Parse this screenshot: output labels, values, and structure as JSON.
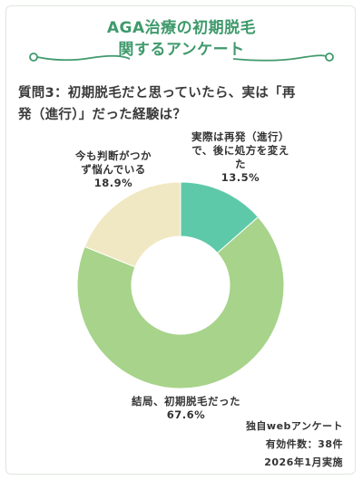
{
  "header": {
    "title_line1": "AGA治療の初期脱毛",
    "title_line2": "関するアンケート",
    "ornament_color": "#3f9a6c"
  },
  "question": {
    "line1": "質問3：初期脱毛だと思っていたら、実は「再",
    "line2": "発（進行）」だった経験は？"
  },
  "chart_data": {
    "type": "pie",
    "donut": true,
    "categories": [
      "実際は再発（進行）で、後に処方を変えた",
      "結局、初期脱毛だった",
      "今も判断がつかず悩んでいる"
    ],
    "values": [
      13.5,
      67.6,
      18.9
    ],
    "colors": [
      "#5ec9a9",
      "#a7d38a",
      "#f0e8c2"
    ],
    "labels": [
      {
        "lines": [
          "実際は再発（進行）",
          "で、後に処方を変え",
          "た"
        ],
        "percent": "13.5%"
      },
      {
        "lines": [
          "結局、初期脱毛だった"
        ],
        "percent": "67.6%"
      },
      {
        "lines": [
          "今も判断がつか",
          "ず悩んでいる"
        ],
        "percent": "18.9%"
      }
    ]
  },
  "source": {
    "line1": "独自webアンケート",
    "line2": "有効件数：38件",
    "line3": "2026年1月実施"
  }
}
